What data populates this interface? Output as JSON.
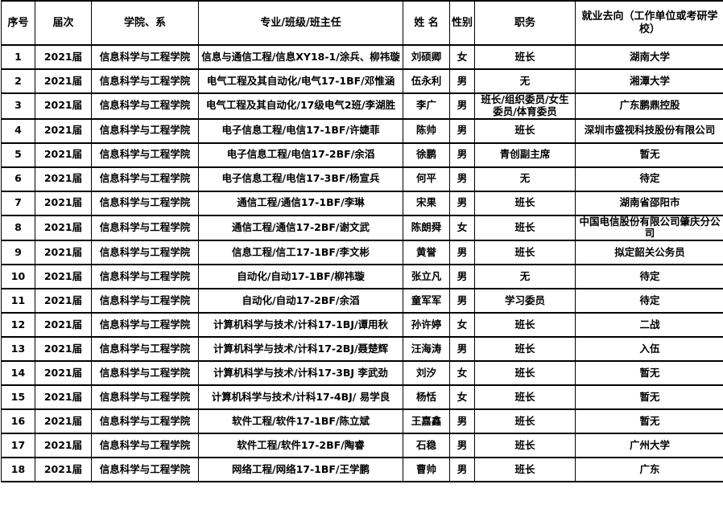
{
  "table": {
    "headers": {
      "no": "序号",
      "cohort": "届次",
      "college": "学院、系",
      "major": "专业/班级/班主任",
      "name": "姓 名",
      "gender": "性别",
      "position": "职务",
      "destination": "就业去向（工作单位或考研学校）"
    },
    "rows": [
      {
        "no": "1",
        "cohort": "2021届",
        "college": "信息科学与工程学院",
        "major": "信息与通信工程/信息XY18-1/涂兵、柳祎璇",
        "name": "刘硕卿",
        "gender": "女",
        "position": "班长",
        "destination": "湖南大学"
      },
      {
        "no": "2",
        "cohort": "2021届",
        "college": "信息科学与工程学院",
        "major": "电气工程及其自动化/电气17-1BF/邓惟涵",
        "name": "伍永利",
        "gender": "男",
        "position": "无",
        "destination": "湘潭大学"
      },
      {
        "no": "3",
        "cohort": "2021届",
        "college": "信息科学与工程学院",
        "major": "电气工程及其自动化/17级电气2班/李湖胜",
        "name": "李广",
        "gender": "男",
        "position": "班长/组织委员/女生委员/体育委员",
        "destination": "广东鹏鼎控股"
      },
      {
        "no": "4",
        "cohort": "2021届",
        "college": "信息科学与工程学院",
        "major": "电子信息工程/电信17-1BF/许婕菲",
        "name": "陈帅",
        "gender": "男",
        "position": "班长",
        "destination": "深圳市盛视科技股份有限公司"
      },
      {
        "no": "5",
        "cohort": "2021届",
        "college": "信息科学与工程学院",
        "major": "电子信息工程/电信17-2BF/余滔",
        "name": "徐鹏",
        "gender": "男",
        "position": "青创副主席",
        "destination": "暂无"
      },
      {
        "no": "6",
        "cohort": "2021届",
        "college": "信息科学与工程学院",
        "major": "电子信息工程/电信17-3BF/杨宣兵",
        "name": "何平",
        "gender": "男",
        "position": "无",
        "destination": "待定"
      },
      {
        "no": "7",
        "cohort": "2021届",
        "college": "信息科学与工程学院",
        "major": "通信工程/通信17-1BF/李琳",
        "name": "宋果",
        "gender": "男",
        "position": "班长",
        "destination": "湖南省邵阳市"
      },
      {
        "no": "8",
        "cohort": "2021届",
        "college": "信息科学与工程学院",
        "major": "通信工程/通信17-2BF/谢文武",
        "name": "陈朗舜",
        "gender": "女",
        "position": "班长",
        "destination": "中国电信股份有限公司肇庆分公司"
      },
      {
        "no": "9",
        "cohort": "2021届",
        "college": "信息科学与工程学院",
        "major": "信息工程/信工17-1BF/李文彬",
        "name": "黄誉",
        "gender": "男",
        "position": "班长",
        "destination": "拟定韶关公务员"
      },
      {
        "no": "10",
        "cohort": "2021届",
        "college": "信息科学与工程学院",
        "major": "自动化/自动17-1BF/柳祎璇",
        "name": "张立凡",
        "gender": "男",
        "position": "无",
        "destination": "待定"
      },
      {
        "no": "11",
        "cohort": "2021届",
        "college": "信息科学与工程学院",
        "major": "自动化/自动17-2BF/余滔",
        "name": "童军军",
        "gender": "男",
        "position": "学习委员",
        "destination": "待定"
      },
      {
        "no": "12",
        "cohort": "2021届",
        "college": "信息科学与工程学院",
        "major": "计算机科学与技术/计科17-1BJ/谭用秋",
        "name": "孙许婷",
        "gender": "女",
        "position": "班长",
        "destination": "二战"
      },
      {
        "no": "13",
        "cohort": "2021届",
        "college": "信息科学与工程学院",
        "major": "计算机科学与技术/计科17-2BJ/聂楚辉",
        "name": "汪海涛",
        "gender": "男",
        "position": "班长",
        "destination": "入伍"
      },
      {
        "no": "14",
        "cohort": "2021届",
        "college": "信息科学与工程学院",
        "major": "计算机科学与技术/计科17-3BJ 李武劲",
        "name": "刘汐",
        "gender": "女",
        "position": "班长",
        "destination": "暂无"
      },
      {
        "no": "15",
        "cohort": "2021届",
        "college": "信息科学与工程学院",
        "major": "计算机科学与技术/计科17-4BJ/ 易学良",
        "name": "杨恬",
        "gender": "女",
        "position": "班长",
        "destination": "暂无"
      },
      {
        "no": "16",
        "cohort": "2021届",
        "college": "信息科学与工程学院",
        "major": "软件工程/软件17-1BF/陈立斌",
        "name": "王嘉鑫",
        "gender": "男",
        "position": "班长",
        "destination": "暂无"
      },
      {
        "no": "17",
        "cohort": "2021届",
        "college": "信息科学与工程学院",
        "major": "软件工程/软件17-2BF/陶睿",
        "name": "石稳",
        "gender": "男",
        "position": "班长",
        "destination": "广州大学"
      },
      {
        "no": "18",
        "cohort": "2021届",
        "college": "信息科学与工程学院",
        "major": "网络工程/网络17-1BF/王学鹏",
        "name": "曹帅",
        "gender": "男",
        "position": "班长",
        "destination": "广东"
      }
    ]
  }
}
